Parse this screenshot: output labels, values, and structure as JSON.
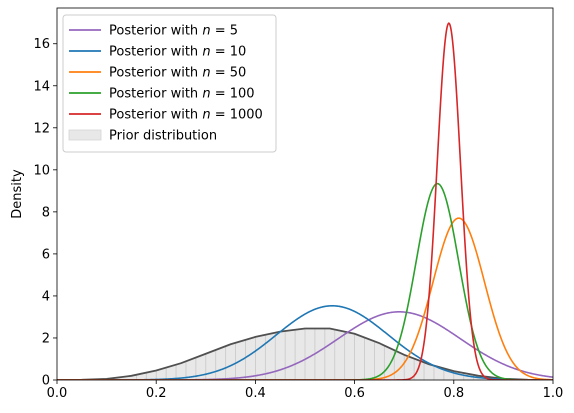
{
  "chart_data": {
    "type": "line",
    "title": "",
    "xlabel": "",
    "ylabel": "Density",
    "xlim": [
      0,
      1
    ],
    "ylim": [
      0,
      17.7
    ],
    "xticks": [
      "0.0",
      "0.2",
      "0.4",
      "0.6",
      "0.8",
      "1.0"
    ],
    "yticks": [
      "0",
      "2",
      "4",
      "6",
      "8",
      "10",
      "12",
      "14",
      "16"
    ],
    "legend_position": "top-left",
    "series": [
      {
        "name": "Posterior with n = 5",
        "legend_prefix": "Posterior with ",
        "legend_var": "n",
        "legend_eq": " = 5",
        "color": "#9467bd",
        "mean": 0.69,
        "sd": 0.123
      },
      {
        "name": "Posterior with n = 10",
        "legend_prefix": "Posterior with ",
        "legend_var": "n",
        "legend_eq": " = 10",
        "color": "#1f77b4",
        "mean": 0.555,
        "sd": 0.113
      },
      {
        "name": "Posterior with n = 50",
        "legend_prefix": "Posterior with ",
        "legend_var": "n",
        "legend_eq": " = 50",
        "color": "#ff7f0e",
        "mean": 0.81,
        "sd": 0.0518
      },
      {
        "name": "Posterior with n = 100",
        "legend_prefix": "Posterior with ",
        "legend_var": "n",
        "legend_eq": " = 100",
        "color": "#2ca02c",
        "mean": 0.767,
        "sd": 0.0427
      },
      {
        "name": "Posterior with n = 1000",
        "legend_prefix": "Posterior with ",
        "legend_var": "n",
        "legend_eq": " = 1000",
        "color": "#d62728",
        "mean": 0.79,
        "sd": 0.0235
      }
    ],
    "prior": {
      "name": "Prior distribution",
      "line_color": "#505050",
      "fill_color": "#e8e8e8",
      "points": [
        [
          0.0,
          0.0
        ],
        [
          0.05,
          0.01
        ],
        [
          0.1,
          0.05
        ],
        [
          0.15,
          0.2
        ],
        [
          0.2,
          0.45
        ],
        [
          0.25,
          0.8
        ],
        [
          0.3,
          1.25
        ],
        [
          0.35,
          1.7
        ],
        [
          0.4,
          2.05
        ],
        [
          0.45,
          2.3
        ],
        [
          0.5,
          2.45
        ],
        [
          0.55,
          2.45
        ],
        [
          0.6,
          2.2
        ],
        [
          0.65,
          1.75
        ],
        [
          0.7,
          1.2
        ],
        [
          0.75,
          0.75
        ],
        [
          0.8,
          0.42
        ],
        [
          0.85,
          0.2
        ],
        [
          0.9,
          0.06
        ],
        [
          0.95,
          0.01
        ],
        [
          1.0,
          0.0
        ]
      ]
    }
  }
}
